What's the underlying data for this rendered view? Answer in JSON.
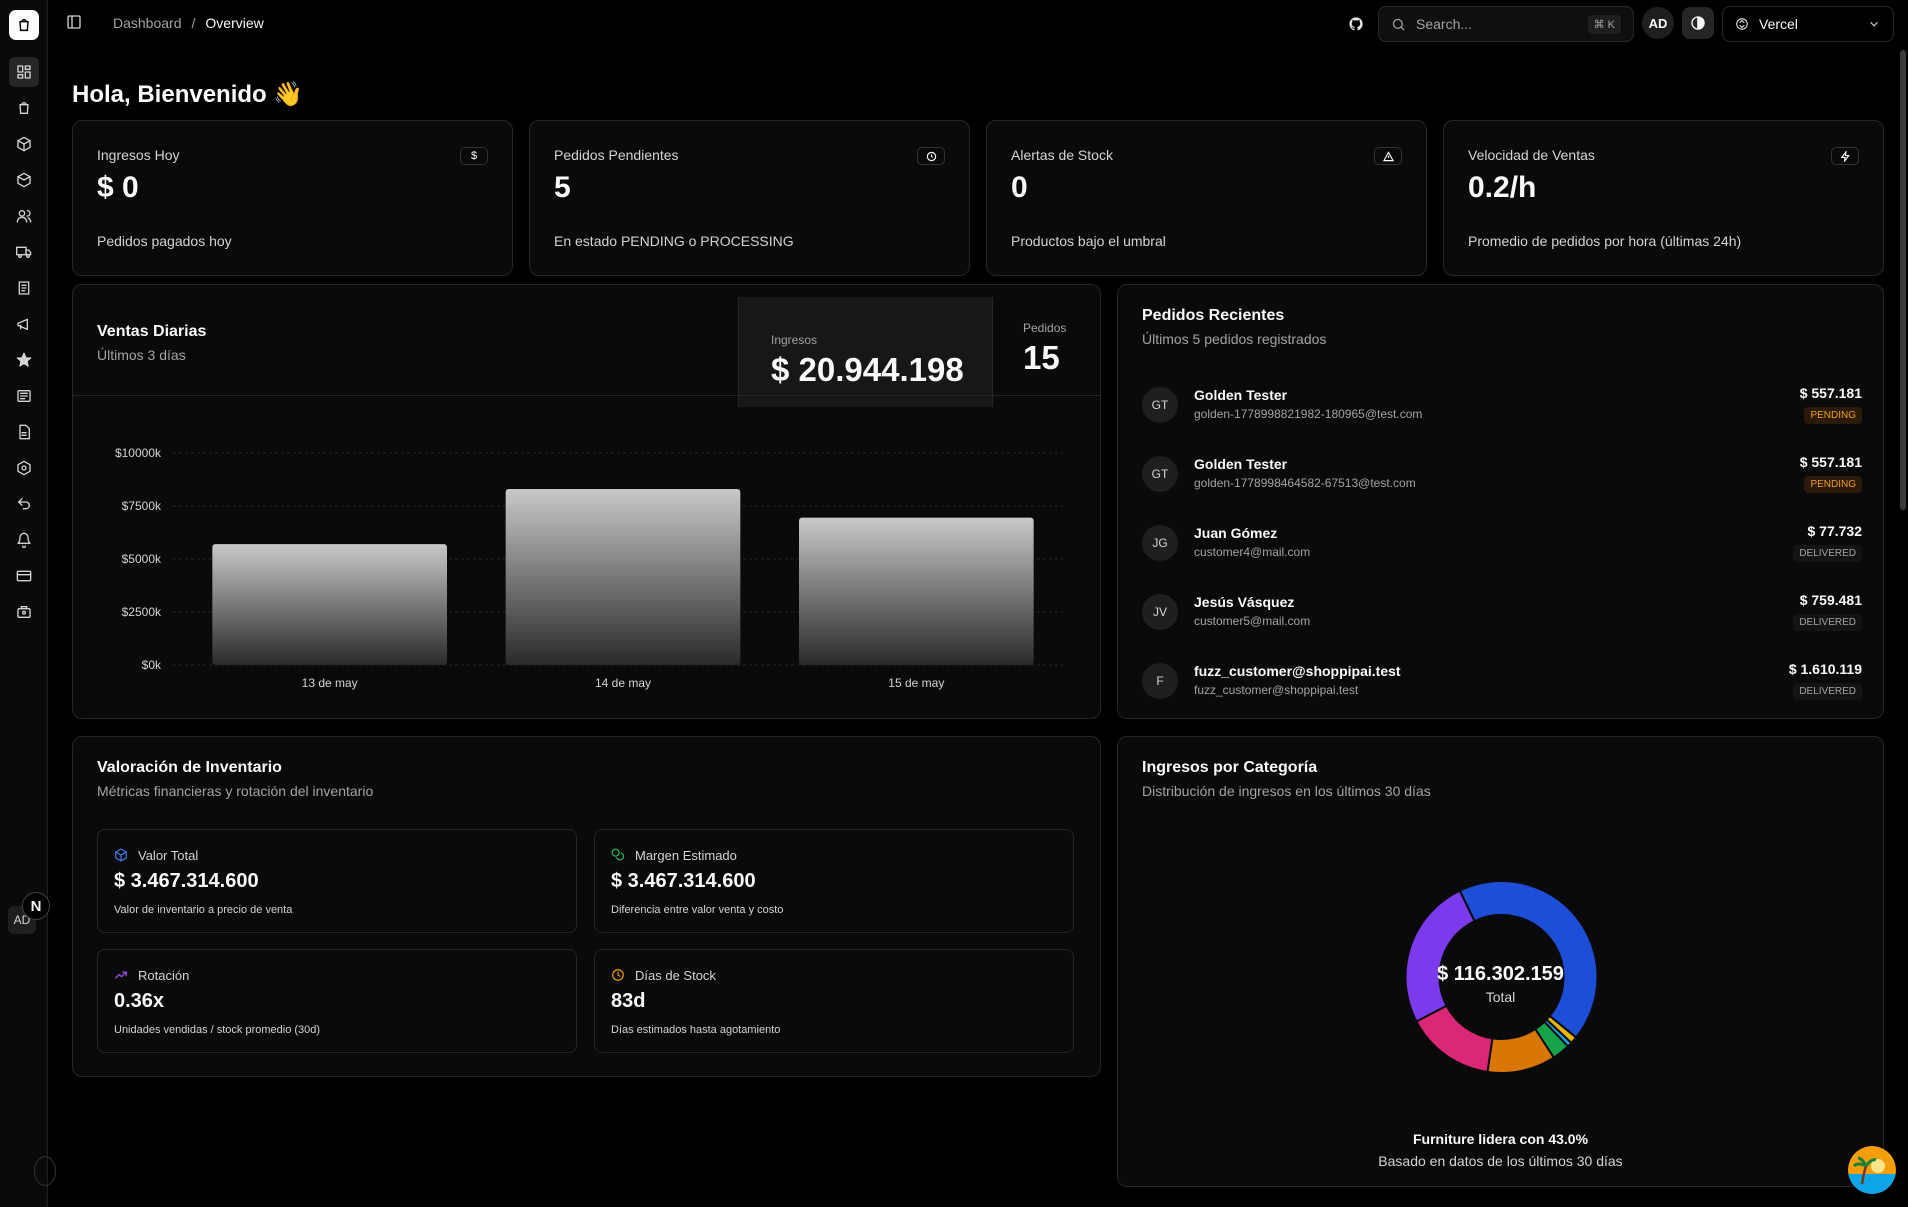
{
  "breadcrumb": {
    "root": "Dashboard",
    "sep": "/",
    "current": "Overview"
  },
  "search": {
    "placeholder": "Search...",
    "shortcut": "⌘ K"
  },
  "user": {
    "initials": "AD"
  },
  "team": {
    "name": "Vercel"
  },
  "welcome": "Hola, Bienvenido 👋",
  "kpis": [
    {
      "label": "Ingresos Hoy",
      "icon": "dollar-icon",
      "value": "$ 0",
      "sub": "Pedidos pagados hoy"
    },
    {
      "label": "Pedidos Pendientes",
      "icon": "clock-icon",
      "value": "5",
      "sub": "En estado PENDING o PROCESSING"
    },
    {
      "label": "Alertas de Stock",
      "icon": "alert-triangle-icon",
      "value": "0",
      "sub": "Productos bajo el umbral"
    },
    {
      "label": "Velocidad de Ventas",
      "icon": "zap-icon",
      "value": "0.2/h",
      "sub": "Promedio de pedidos por hora (últimas 24h)"
    }
  ],
  "daily": {
    "title": "Ventas Diarias",
    "subtitle": "Últimos 3 días",
    "revenue_label": "Ingresos",
    "revenue_value": "$ 20.944.198",
    "orders_label": "Pedidos",
    "orders_value": "15"
  },
  "chart_data": {
    "type": "bar",
    "categories": [
      "13 de may",
      "14 de may",
      "15 de may"
    ],
    "values": [
      5700,
      8300,
      6950
    ],
    "ylim": [
      0,
      10000
    ],
    "yticks": [
      "$0k",
      "$2500k",
      "$5000k",
      "$7500k",
      "$10000k"
    ],
    "ytick_values": [
      0,
      2500,
      5000,
      7500,
      10000
    ],
    "grid": true
  },
  "recent": {
    "title": "Pedidos Recientes",
    "subtitle": "Últimos 5 pedidos registrados",
    "orders": [
      {
        "initials": "GT",
        "name": "Golden Tester",
        "email": "golden-1778998821982-180965@test.com",
        "amount": "$ 557.181",
        "status": "PENDING"
      },
      {
        "initials": "GT",
        "name": "Golden Tester",
        "email": "golden-1778998464582-67513@test.com",
        "amount": "$ 557.181",
        "status": "PENDING"
      },
      {
        "initials": "JG",
        "name": "Juan Gómez",
        "email": "customer4@mail.com",
        "amount": "$ 77.732",
        "status": "DELIVERED"
      },
      {
        "initials": "JV",
        "name": "Jesús Vásquez",
        "email": "customer5@mail.com",
        "amount": "$ 759.481",
        "status": "DELIVERED"
      },
      {
        "initials": "F",
        "name": "fuzz_customer@shoppipai.test",
        "email": "fuzz_customer@shoppipai.test",
        "amount": "$ 1.610.119",
        "status": "DELIVERED"
      }
    ]
  },
  "inventory": {
    "title": "Valoración de Inventario",
    "subtitle": "Métricas financieras y rotación del inventario",
    "metrics": [
      {
        "label": "Valor Total",
        "value": "$ 3.467.314.600",
        "desc": "Valor de inventario a precio de venta",
        "icon": "box-icon",
        "color": "#3b82f6"
      },
      {
        "label": "Margen Estimado",
        "value": "$ 3.467.314.600",
        "desc": "Diferencia entre valor venta y costo",
        "icon": "coins-icon",
        "color": "#22c55e"
      },
      {
        "label": "Rotación",
        "value": "0.36x",
        "desc": "Unidades vendidas / stock promedio (30d)",
        "icon": "trending-up-icon",
        "color": "#a855f7"
      },
      {
        "label": "Días de Stock",
        "value": "83d",
        "desc": "Días estimados hasta agotamiento",
        "icon": "clock-icon",
        "color": "#f59e0b"
      }
    ]
  },
  "category": {
    "title": "Ingresos por Categoría",
    "subtitle": "Distribución de ingresos en los últimos 30 días",
    "total": "$ 116.302.159",
    "total_label": "Total",
    "lead": "Furniture lidera con 43.0%",
    "lead_sub": "Basado en datos de los últimos 30 días",
    "slices": [
      {
        "value": 43.0,
        "color": "#1d4ed8"
      },
      {
        "value": 1.2,
        "color": "#eab308"
      },
      {
        "value": 0.8,
        "color": "#0ea5e9"
      },
      {
        "value": 3.0,
        "color": "#16a34a"
      },
      {
        "value": 11.5,
        "color": "#d97706"
      },
      {
        "value": 15.0,
        "color": "#db2777"
      },
      {
        "value": 25.5,
        "color": "#7c3aed"
      }
    ]
  },
  "sidebar": {
    "avatar": "AD"
  }
}
